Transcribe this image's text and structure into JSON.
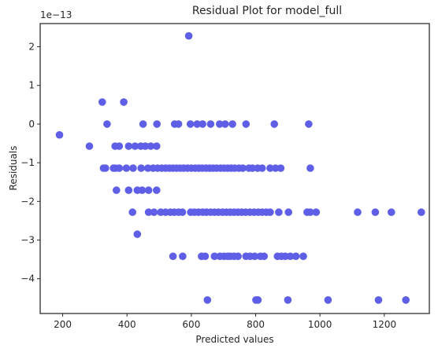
{
  "chart_data": {
    "type": "scatter",
    "title": "Residual Plot for model_full",
    "xlabel": "Predicted values",
    "ylabel": "Residuals",
    "y_scale_label": "1e−13",
    "xlim": [
      130,
      1340
    ],
    "ylim": [
      -4.9,
      2.6
    ],
    "xticks": [
      200,
      400,
      600,
      800,
      1000,
      1200
    ],
    "yticks": [
      -4,
      -3,
      -2,
      -1,
      0,
      1,
      2
    ],
    "ytick_labels": [
      "−4",
      "−3",
      "−2",
      "−1",
      "0",
      "1",
      "2"
    ],
    "grid": false,
    "marker_color": "#5e5ee6",
    "series": [
      {
        "x": [
          592,
          190,
          283,
          323,
          390,
          338,
          450,
          493,
          548,
          560,
          597,
          618,
          635,
          660,
          688,
          705,
          728,
          770,
          858,
          965,
          363,
          376,
          405,
          425,
          443,
          457,
          474,
          492,
          327,
          333,
          358,
          364,
          376,
          398,
          419,
          444,
          465,
          481,
          495,
          508,
          520,
          532,
          543,
          554,
          565,
          576,
          588,
          600,
          612,
          623,
          634,
          646,
          657,
          668,
          679,
          691,
          702,
          713,
          724,
          735,
          748,
          760,
          779,
          790,
          806,
          820,
          845,
          862,
          878,
          970,
          367,
          405,
          432,
          447,
          467,
          492,
          417,
          467,
          484,
          505,
          520,
          535,
          547,
          560,
          572,
          598,
          610,
          622,
          635,
          647,
          660,
          672,
          684,
          697,
          709,
          721,
          733,
          745,
          757,
          769,
          782,
          795,
          808,
          820,
          833,
          845,
          872,
          902,
          960,
          970,
          988,
          1117,
          1172,
          1222,
          1315,
          432,
          543,
          573,
          632,
          643,
          672,
          689,
          702,
          713,
          721,
          733,
          745,
          770,
          783,
          797,
          815,
          826,
          868,
          880,
          892,
          908,
          925,
          948,
          650,
          801,
          807,
          900,
          1025,
          1182,
          1267
        ],
        "y": [
          2.28,
          -0.28,
          -0.57,
          0.57,
          0.57,
          0.0,
          0.0,
          0.0,
          0.0,
          0.0,
          0.0,
          0.0,
          0.0,
          0.0,
          0.0,
          0.0,
          0.0,
          0.0,
          0.0,
          0.0,
          -0.57,
          -0.57,
          -0.57,
          -0.57,
          -0.57,
          -0.57,
          -0.57,
          -0.57,
          -1.14,
          -1.14,
          -1.14,
          -1.14,
          -1.14,
          -1.14,
          -1.14,
          -1.14,
          -1.14,
          -1.14,
          -1.14,
          -1.14,
          -1.14,
          -1.14,
          -1.14,
          -1.14,
          -1.14,
          -1.14,
          -1.14,
          -1.14,
          -1.14,
          -1.14,
          -1.14,
          -1.14,
          -1.14,
          -1.14,
          -1.14,
          -1.14,
          -1.14,
          -1.14,
          -1.14,
          -1.14,
          -1.14,
          -1.14,
          -1.14,
          -1.14,
          -1.14,
          -1.14,
          -1.14,
          -1.14,
          -1.14,
          -1.14,
          -1.71,
          -1.71,
          -1.71,
          -1.71,
          -1.71,
          -1.71,
          -2.28,
          -2.28,
          -2.28,
          -2.28,
          -2.28,
          -2.28,
          -2.28,
          -2.28,
          -2.28,
          -2.28,
          -2.28,
          -2.28,
          -2.28,
          -2.28,
          -2.28,
          -2.28,
          -2.28,
          -2.28,
          -2.28,
          -2.28,
          -2.28,
          -2.28,
          -2.28,
          -2.28,
          -2.28,
          -2.28,
          -2.28,
          -2.28,
          -2.28,
          -2.28,
          -2.28,
          -2.28,
          -2.28,
          -2.28,
          -2.28,
          -2.28,
          -2.28,
          -2.28,
          -2.28,
          -2.85,
          -3.42,
          -3.42,
          -3.42,
          -3.42,
          -3.42,
          -3.42,
          -3.42,
          -3.42,
          -3.42,
          -3.42,
          -3.42,
          -3.42,
          -3.42,
          -3.42,
          -3.42,
          -3.42,
          -3.42,
          -3.42,
          -3.42,
          -3.42,
          -3.42,
          -3.42,
          -4.55,
          -4.55,
          -4.55,
          -4.55,
          -4.55,
          -4.55,
          -4.55
        ]
      }
    ]
  }
}
